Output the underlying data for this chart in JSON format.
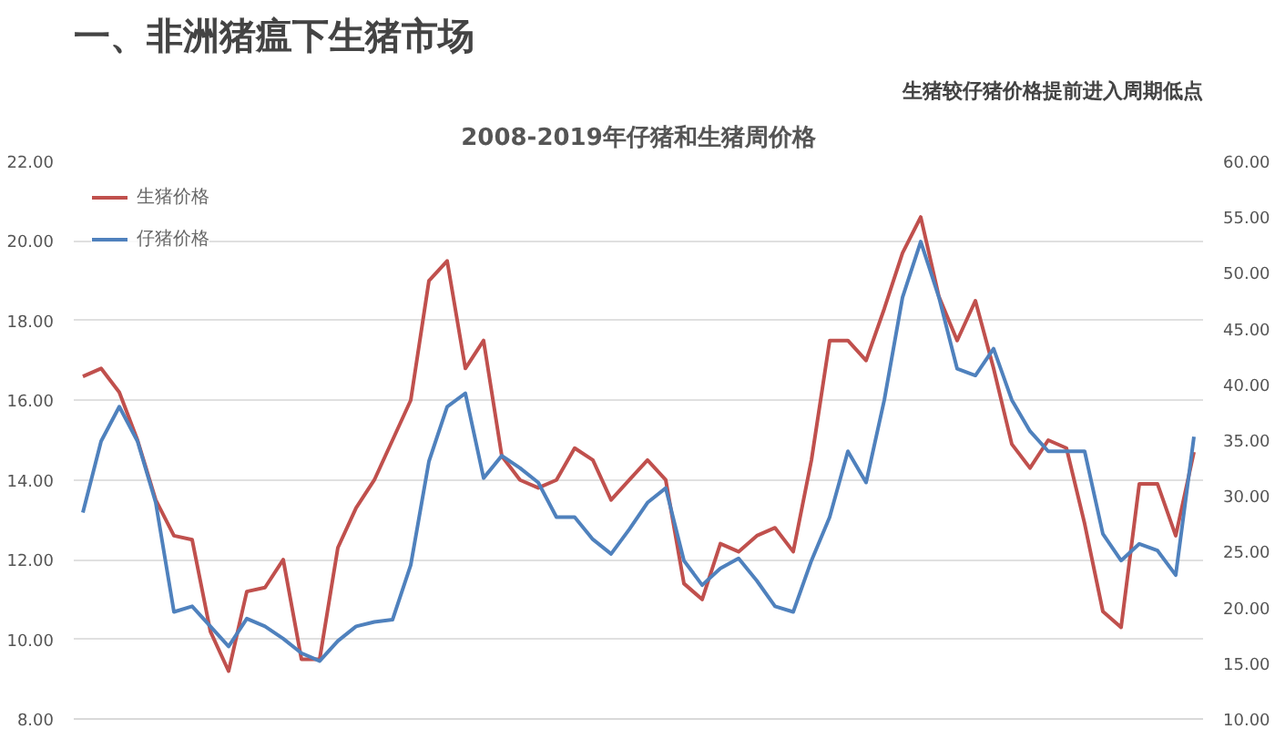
{
  "chart_data": {
    "type": "line",
    "title": "一、非洲猪瘟下生猪市场",
    "subtitle": "2008-2019年仔猪和生猪周价格",
    "annotations": [
      "生猪较仔猪价格提前进入周期低点"
    ],
    "categories": [
      null,
      null,
      null,
      null,
      null,
      null,
      null,
      null,
      null,
      null,
      null,
      null,
      null,
      null,
      null,
      null,
      null,
      null,
      null,
      null,
      null,
      null,
      null,
      null,
      null,
      null,
      null,
      null,
      null,
      null,
      null,
      null,
      null,
      null,
      null,
      null,
      null,
      null,
      null,
      null,
      null,
      null,
      null,
      null,
      null,
      null,
      null,
      null,
      null,
      null,
      null,
      null,
      null,
      null,
      null,
      null,
      null,
      null,
      null,
      null,
      null,
      null
    ],
    "series": [
      {
        "name": "生猪价格",
        "color": "#c0504d",
        "values": [
          16.6,
          16.8,
          16.2,
          15.0,
          13.5,
          12.6,
          12.5,
          10.2,
          9.2,
          11.2,
          11.3,
          12.0,
          9.5,
          9.5,
          12.3,
          13.3,
          14.0,
          15.0,
          16.0,
          19.0,
          19.5,
          16.8,
          17.5,
          14.6,
          14.0,
          13.8,
          14.0,
          14.8,
          14.5,
          13.5,
          14.0,
          14.5,
          14.0,
          11.4,
          11.0,
          12.4,
          12.2,
          12.6,
          12.8,
          12.2,
          14.5,
          17.5,
          17.5,
          17.0,
          18.3,
          19.7,
          20.6,
          18.6,
          17.5,
          18.5,
          16.8,
          14.9,
          14.3,
          15.0,
          14.8,
          12.9,
          10.7,
          10.3,
          13.9,
          13.9,
          12.6,
          14.7
        ]
      },
      {
        "name": "仔猪价格",
        "color": "#4f81bd",
        "axis": "y2",
        "values": [
          28.5,
          34.9,
          38.0,
          34.9,
          29.4,
          19.6,
          20.1,
          18.3,
          16.5,
          19.0,
          18.3,
          17.2,
          15.9,
          15.2,
          17.0,
          18.3,
          18.7,
          18.9,
          23.8,
          33.1,
          38.0,
          39.2,
          31.6,
          33.6,
          32.5,
          31.2,
          28.1,
          28.1,
          26.1,
          24.8,
          27.0,
          29.4,
          30.7,
          24.2,
          22.0,
          23.5,
          24.4,
          22.4,
          20.1,
          19.6,
          24.2,
          28.1,
          34.0,
          31.2,
          38.6,
          47.8,
          52.8,
          47.8,
          41.4,
          40.8,
          43.2,
          38.6,
          35.8,
          34.0,
          34.0,
          34.0,
          26.6,
          24.2,
          25.7,
          25.1,
          22.9,
          35.3
        ]
      }
    ],
    "ylim": [
      8,
      22
    ],
    "yticks": [
      {
        "value": 8,
        "label": "8.00"
      },
      {
        "value": 10,
        "label": "10.00"
      },
      {
        "value": 12,
        "label": "12.00"
      },
      {
        "value": 14,
        "label": "14.00"
      },
      {
        "value": 16,
        "label": "16.00"
      },
      {
        "value": 18,
        "label": "18.00"
      },
      {
        "value": 20,
        "label": "20.00"
      },
      {
        "value": 22,
        "label": "22.00"
      }
    ],
    "y2lim": [
      10,
      60
    ],
    "y2ticks": [
      {
        "value": 10,
        "label": "10.00"
      },
      {
        "value": 15,
        "label": "15.00"
      },
      {
        "value": 20,
        "label": "20.00"
      },
      {
        "value": 25,
        "label": "25.00"
      },
      {
        "value": 30,
        "label": "30.00"
      },
      {
        "value": 35,
        "label": "35.00"
      },
      {
        "value": 40,
        "label": "40.00"
      },
      {
        "value": 45,
        "label": "45.00"
      },
      {
        "value": 50,
        "label": "50.00"
      },
      {
        "value": 55,
        "label": "55.00"
      },
      {
        "value": 60,
        "label": "60.00"
      }
    ],
    "grid": "y",
    "legend": "top left",
    "marker": "none",
    "line_style": "solid"
  }
}
